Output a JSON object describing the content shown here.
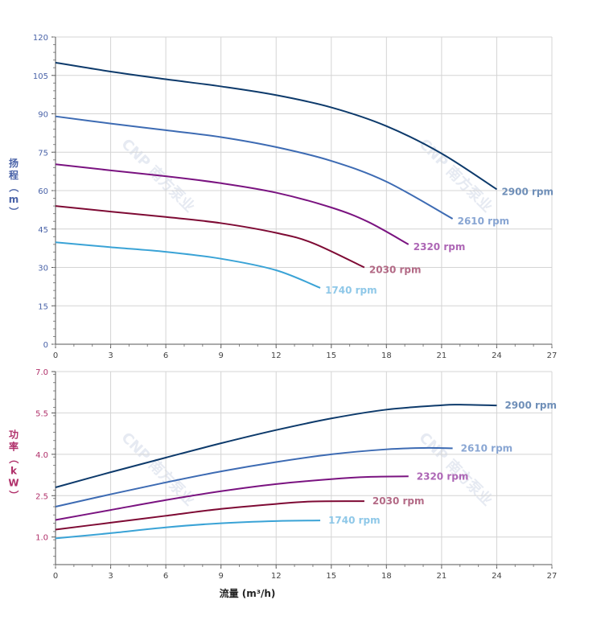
{
  "chart_data": [
    {
      "type": "line",
      "ylabel": "扬程（m）",
      "xlim": [
        0,
        27
      ],
      "ylim": [
        0,
        120
      ],
      "x_ticks": [
        0,
        3,
        6,
        9,
        12,
        15,
        18,
        21,
        24,
        27
      ],
      "y_ticks": [
        0,
        15,
        30,
        45,
        60,
        75,
        90,
        105,
        120
      ],
      "grid": true,
      "series": [
        {
          "name": "2900 rpm",
          "color": "#0d3a6b",
          "label_color": "#6f8fb8",
          "points": [
            [
              0,
              110
            ],
            [
              3,
              106.5
            ],
            [
              6,
              103.5
            ],
            [
              9,
              100.7
            ],
            [
              12,
              97.3
            ],
            [
              15,
              92.5
            ],
            [
              18,
              85.2
            ],
            [
              21,
              74.5
            ],
            [
              24,
              60.5
            ]
          ]
        },
        {
          "name": "2610 rpm",
          "color": "#3d6bb3",
          "label_color": "#89a6d3",
          "points": [
            [
              0,
              89
            ],
            [
              3,
              86.2
            ],
            [
              6,
              83.6
            ],
            [
              9,
              80.9
            ],
            [
              12,
              77
            ],
            [
              15,
              71.6
            ],
            [
              18,
              63.5
            ],
            [
              21.6,
              49
            ]
          ]
        },
        {
          "name": "2320 rpm",
          "color": "#7a1380",
          "label_color": "#ad66b5",
          "points": [
            [
              0,
              70.3
            ],
            [
              3,
              67.9
            ],
            [
              6,
              65.6
            ],
            [
              9,
              62.9
            ],
            [
              12,
              59.2
            ],
            [
              15,
              53.4
            ],
            [
              17,
              47.8
            ],
            [
              19.2,
              39
            ]
          ]
        },
        {
          "name": "2030 rpm",
          "color": "#7e0a34",
          "label_color": "#b36a86",
          "points": [
            [
              0,
              54
            ],
            [
              3,
              51.8
            ],
            [
              6,
              49.7
            ],
            [
              9,
              47.3
            ],
            [
              12,
              43.5
            ],
            [
              14,
              39.5
            ],
            [
              16.8,
              30
            ]
          ]
        },
        {
          "name": "1740 rpm",
          "color": "#3aa3d6",
          "label_color": "#8fc8e8",
          "points": [
            [
              0,
              39.8
            ],
            [
              3,
              37.9
            ],
            [
              6,
              36.1
            ],
            [
              9,
              33.4
            ],
            [
              12,
              28.9
            ],
            [
              14.4,
              22
            ]
          ]
        }
      ]
    },
    {
      "type": "line",
      "xlabel": "流量 (m³/h)",
      "ylabel": "功率（kW）",
      "xlim": [
        0,
        27
      ],
      "ylim": [
        0,
        7.0
      ],
      "x_ticks": [
        0,
        3,
        6,
        9,
        12,
        15,
        18,
        21,
        24,
        27
      ],
      "y_ticks": [
        "1.0",
        "2.5",
        "4.0",
        "5.5",
        "7.0"
      ],
      "grid": true,
      "series": [
        {
          "name": "2900 rpm",
          "color": "#0d3a6b",
          "label_color": "#6f8fb8",
          "points": [
            [
              0,
              2.8
            ],
            [
              3,
              3.35
            ],
            [
              6,
              3.88
            ],
            [
              9,
              4.4
            ],
            [
              12,
              4.88
            ],
            [
              15,
              5.3
            ],
            [
              18,
              5.62
            ],
            [
              21,
              5.78
            ],
            [
              22,
              5.8
            ],
            [
              24,
              5.77
            ]
          ]
        },
        {
          "name": "2610 rpm",
          "color": "#3d6bb3",
          "label_color": "#89a6d3",
          "points": [
            [
              0,
              2.1
            ],
            [
              3,
              2.55
            ],
            [
              6,
              2.98
            ],
            [
              9,
              3.38
            ],
            [
              12,
              3.72
            ],
            [
              15,
              4.0
            ],
            [
              18,
              4.18
            ],
            [
              20,
              4.23
            ],
            [
              21.6,
              4.22
            ]
          ]
        },
        {
          "name": "2320 rpm",
          "color": "#7a1380",
          "label_color": "#ad66b5",
          "points": [
            [
              0,
              1.62
            ],
            [
              3,
              1.98
            ],
            [
              6,
              2.34
            ],
            [
              9,
              2.66
            ],
            [
              12,
              2.92
            ],
            [
              15,
              3.1
            ],
            [
              17,
              3.18
            ],
            [
              19.2,
              3.2
            ]
          ]
        },
        {
          "name": "2030 rpm",
          "color": "#7e0a34",
          "label_color": "#b36a86",
          "points": [
            [
              0,
              1.27
            ],
            [
              3,
              1.52
            ],
            [
              6,
              1.77
            ],
            [
              9,
              2.02
            ],
            [
              12,
              2.2
            ],
            [
              14,
              2.29
            ],
            [
              16.8,
              2.3
            ]
          ]
        },
        {
          "name": "1740 rpm",
          "color": "#3aa3d6",
          "label_color": "#8fc8e8",
          "points": [
            [
              0,
              0.95
            ],
            [
              3,
              1.14
            ],
            [
              6,
              1.35
            ],
            [
              9,
              1.5
            ],
            [
              12,
              1.58
            ],
            [
              14.4,
              1.6
            ]
          ]
        }
      ]
    }
  ],
  "watermark": {
    "text": "CNP 南方泵业"
  }
}
